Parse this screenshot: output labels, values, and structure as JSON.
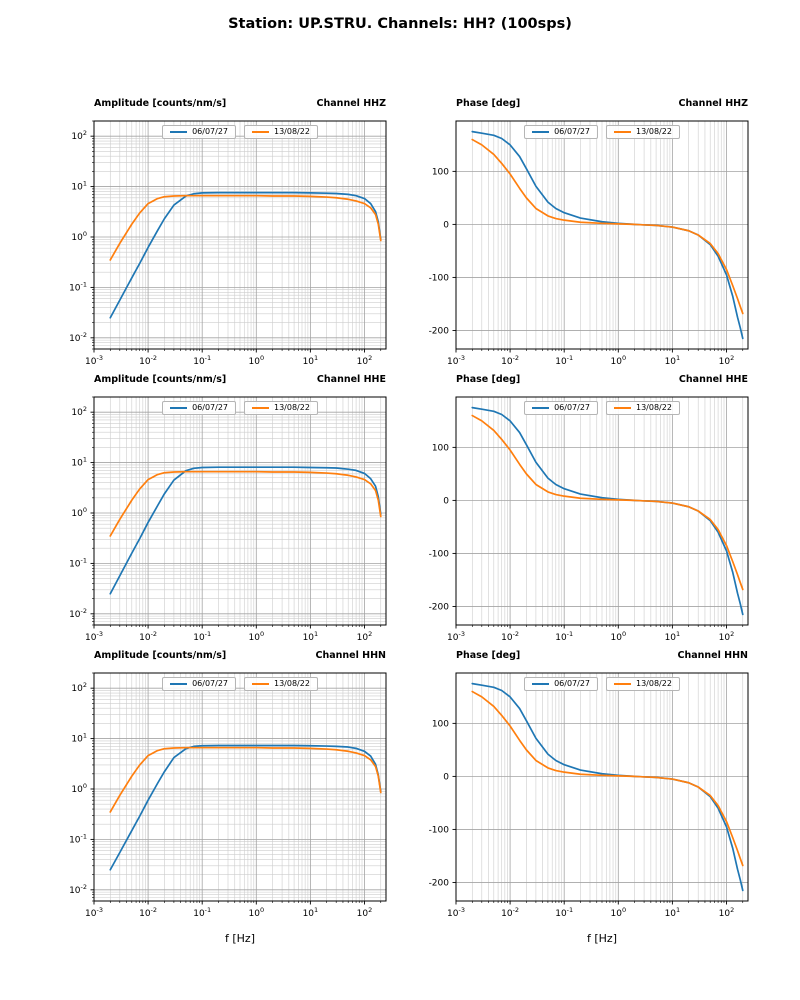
{
  "chart_data": {
    "figure_title": "Station: UP.STRU. Channels: HH? (100sps)",
    "xlabel": "f [Hz]",
    "legend": [
      "06/07/27",
      "13/08/22"
    ],
    "colors": [
      "#1f77b4",
      "#ff7f0e"
    ],
    "charts": [
      {
        "type": "line",
        "title_left": "Amplitude [counts/nm/s]",
        "title_right": "Channel HHZ",
        "xscale": "log",
        "yscale": "log",
        "xlim": [
          0.001,
          250
        ],
        "ylim": [
          0.006,
          200
        ],
        "xticks_exp": [
          -3,
          -2,
          -1,
          0,
          1,
          2
        ],
        "yticks_exp": [
          -2,
          -1,
          0,
          1,
          2
        ],
        "grid": "both",
        "f": [
          0.002,
          0.003,
          0.005,
          0.007,
          0.01,
          0.015,
          0.02,
          0.03,
          0.05,
          0.07,
          0.1,
          0.2,
          0.5,
          1,
          2,
          5,
          10,
          20,
          30,
          50,
          70,
          100,
          130,
          160,
          180,
          200
        ],
        "series": [
          {
            "name": "06/07/27",
            "values": [
              0.025,
              0.056,
              0.155,
              0.3,
              0.62,
              1.35,
              2.3,
              4.3,
              6.5,
              7.2,
              7.5,
              7.6,
              7.6,
              7.6,
              7.6,
              7.6,
              7.5,
              7.4,
              7.3,
              7.0,
              6.6,
              5.8,
              4.6,
              3.2,
              2.0,
              0.9
            ]
          },
          {
            "name": "13/08/22",
            "values": [
              0.35,
              0.75,
              1.8,
              3.0,
              4.6,
              5.8,
              6.3,
              6.5,
              6.6,
              6.6,
              6.6,
              6.6,
              6.6,
              6.6,
              6.5,
              6.5,
              6.4,
              6.2,
              6.0,
              5.6,
              5.2,
              4.6,
              3.8,
              2.8,
              1.8,
              0.85
            ]
          }
        ]
      },
      {
        "type": "line",
        "title_left": "Phase [deg]",
        "title_right": "Channel HHZ",
        "xscale": "log",
        "yscale": "linear",
        "xlim": [
          0.001,
          250
        ],
        "ylim": [
          -235,
          195
        ],
        "xticks_exp": [
          -3,
          -2,
          -1,
          0,
          1,
          2
        ],
        "yticks": [
          -200,
          -100,
          0,
          100
        ],
        "grid": "x-minor-y-major",
        "f": [
          0.002,
          0.003,
          0.005,
          0.007,
          0.01,
          0.015,
          0.02,
          0.03,
          0.05,
          0.07,
          0.1,
          0.2,
          0.5,
          1,
          2,
          5,
          10,
          20,
          30,
          50,
          70,
          100,
          130,
          160,
          180,
          200
        ],
        "series": [
          {
            "name": "06/07/27",
            "values": [
              175,
              172,
              168,
              162,
              150,
              128,
              105,
              72,
              42,
              30,
              22,
              12,
              5,
              2,
              0,
              -2,
              -5,
              -12,
              -20,
              -38,
              -60,
              -95,
              -135,
              -175,
              -195,
              -215
            ]
          },
          {
            "name": "13/08/22",
            "values": [
              160,
              150,
              132,
              115,
              95,
              68,
              50,
              30,
              16,
              11,
              8,
              4,
              2,
              1,
              0,
              -2,
              -5,
              -12,
              -20,
              -36,
              -55,
              -85,
              -115,
              -140,
              -155,
              -168
            ]
          }
        ]
      },
      {
        "type": "line",
        "title_left": "Amplitude [counts/nm/s]",
        "title_right": "Channel HHE",
        "xscale": "log",
        "yscale": "log",
        "xlim": [
          0.001,
          250
        ],
        "ylim": [
          0.006,
          200
        ],
        "xticks_exp": [
          -3,
          -2,
          -1,
          0,
          1,
          2
        ],
        "yticks_exp": [
          -2,
          -1,
          0,
          1,
          2
        ],
        "grid": "both",
        "f": [
          0.002,
          0.003,
          0.005,
          0.007,
          0.01,
          0.015,
          0.02,
          0.03,
          0.05,
          0.07,
          0.1,
          0.2,
          0.5,
          1,
          2,
          5,
          10,
          20,
          30,
          50,
          70,
          100,
          130,
          160,
          180,
          200
        ],
        "series": [
          {
            "name": "06/07/27",
            "values": [
              0.025,
              0.057,
              0.16,
              0.31,
              0.65,
              1.4,
              2.4,
              4.5,
              6.9,
              7.7,
              8.0,
              8.1,
              8.1,
              8.1,
              8.1,
              8.1,
              8.0,
              7.9,
              7.8,
              7.4,
              7.0,
              6.1,
              4.8,
              3.4,
              2.1,
              0.95
            ]
          },
          {
            "name": "13/08/22",
            "values": [
              0.35,
              0.75,
              1.8,
              3.0,
              4.6,
              5.8,
              6.3,
              6.5,
              6.6,
              6.6,
              6.6,
              6.6,
              6.6,
              6.6,
              6.5,
              6.5,
              6.4,
              6.2,
              6.0,
              5.6,
              5.2,
              4.6,
              3.8,
              2.8,
              1.8,
              0.85
            ]
          }
        ]
      },
      {
        "type": "line",
        "title_left": "Phase [deg]",
        "title_right": "Channel HHE",
        "xscale": "log",
        "yscale": "linear",
        "xlim": [
          0.001,
          250
        ],
        "ylim": [
          -235,
          195
        ],
        "xticks_exp": [
          -3,
          -2,
          -1,
          0,
          1,
          2
        ],
        "yticks": [
          -200,
          -100,
          0,
          100
        ],
        "grid": "x-minor-y-major",
        "f": [
          0.002,
          0.003,
          0.005,
          0.007,
          0.01,
          0.015,
          0.02,
          0.03,
          0.05,
          0.07,
          0.1,
          0.2,
          0.5,
          1,
          2,
          5,
          10,
          20,
          30,
          50,
          70,
          100,
          130,
          160,
          180,
          200
        ],
        "series": [
          {
            "name": "06/07/27",
            "values": [
              175,
              172,
              168,
              162,
              150,
              128,
              105,
              72,
              42,
              30,
              22,
              12,
              5,
              2,
              0,
              -2,
              -5,
              -12,
              -20,
              -38,
              -60,
              -95,
              -135,
              -175,
              -195,
              -215
            ]
          },
          {
            "name": "13/08/22",
            "values": [
              160,
              150,
              132,
              115,
              95,
              68,
              50,
              30,
              16,
              11,
              8,
              4,
              2,
              1,
              0,
              -2,
              -5,
              -12,
              -20,
              -36,
              -55,
              -85,
              -115,
              -140,
              -155,
              -168
            ]
          }
        ]
      },
      {
        "type": "line",
        "title_left": "Amplitude [counts/nm/s]",
        "title_right": "Channel HHN",
        "xscale": "log",
        "yscale": "log",
        "xlim": [
          0.001,
          250
        ],
        "ylim": [
          0.006,
          200
        ],
        "xticks_exp": [
          -3,
          -2,
          -1,
          0,
          1,
          2
        ],
        "yticks_exp": [
          -2,
          -1,
          0,
          1,
          2
        ],
        "grid": "both",
        "f": [
          0.002,
          0.003,
          0.005,
          0.007,
          0.01,
          0.015,
          0.02,
          0.03,
          0.05,
          0.07,
          0.1,
          0.2,
          0.5,
          1,
          2,
          5,
          10,
          20,
          30,
          50,
          70,
          100,
          130,
          160,
          180,
          200
        ],
        "series": [
          {
            "name": "06/07/27",
            "values": [
              0.025,
              0.055,
              0.15,
              0.29,
              0.6,
              1.3,
              2.2,
              4.2,
              6.3,
              7.0,
              7.2,
              7.3,
              7.3,
              7.3,
              7.3,
              7.3,
              7.2,
              7.1,
              7.0,
              6.8,
              6.4,
              5.6,
              4.5,
              3.1,
              1.9,
              0.9
            ]
          },
          {
            "name": "13/08/22",
            "values": [
              0.35,
              0.75,
              1.8,
              3.0,
              4.6,
              5.8,
              6.3,
              6.5,
              6.6,
              6.6,
              6.6,
              6.6,
              6.6,
              6.6,
              6.5,
              6.5,
              6.4,
              6.2,
              6.0,
              5.6,
              5.2,
              4.6,
              3.8,
              2.8,
              1.8,
              0.85
            ]
          }
        ]
      },
      {
        "type": "line",
        "title_left": "Phase [deg]",
        "title_right": "Channel HHN",
        "xscale": "log",
        "yscale": "linear",
        "xlim": [
          0.001,
          250
        ],
        "ylim": [
          -235,
          195
        ],
        "xticks_exp": [
          -3,
          -2,
          -1,
          0,
          1,
          2
        ],
        "yticks": [
          -200,
          -100,
          0,
          100
        ],
        "grid": "x-minor-y-major",
        "f": [
          0.002,
          0.003,
          0.005,
          0.007,
          0.01,
          0.015,
          0.02,
          0.03,
          0.05,
          0.07,
          0.1,
          0.2,
          0.5,
          1,
          2,
          5,
          10,
          20,
          30,
          50,
          70,
          100,
          130,
          160,
          180,
          200
        ],
        "series": [
          {
            "name": "06/07/27",
            "values": [
              175,
              172,
              168,
              162,
              150,
              128,
              105,
              72,
              42,
              30,
              22,
              12,
              5,
              2,
              0,
              -2,
              -5,
              -12,
              -20,
              -38,
              -60,
              -95,
              -135,
              -175,
              -195,
              -215
            ]
          },
          {
            "name": "13/08/22",
            "values": [
              160,
              150,
              132,
              115,
              95,
              68,
              50,
              30,
              16,
              11,
              8,
              4,
              2,
              1,
              0,
              -2,
              -5,
              -12,
              -20,
              -36,
              -55,
              -85,
              -115,
              -140,
              -155,
              -168
            ]
          }
        ]
      }
    ]
  }
}
